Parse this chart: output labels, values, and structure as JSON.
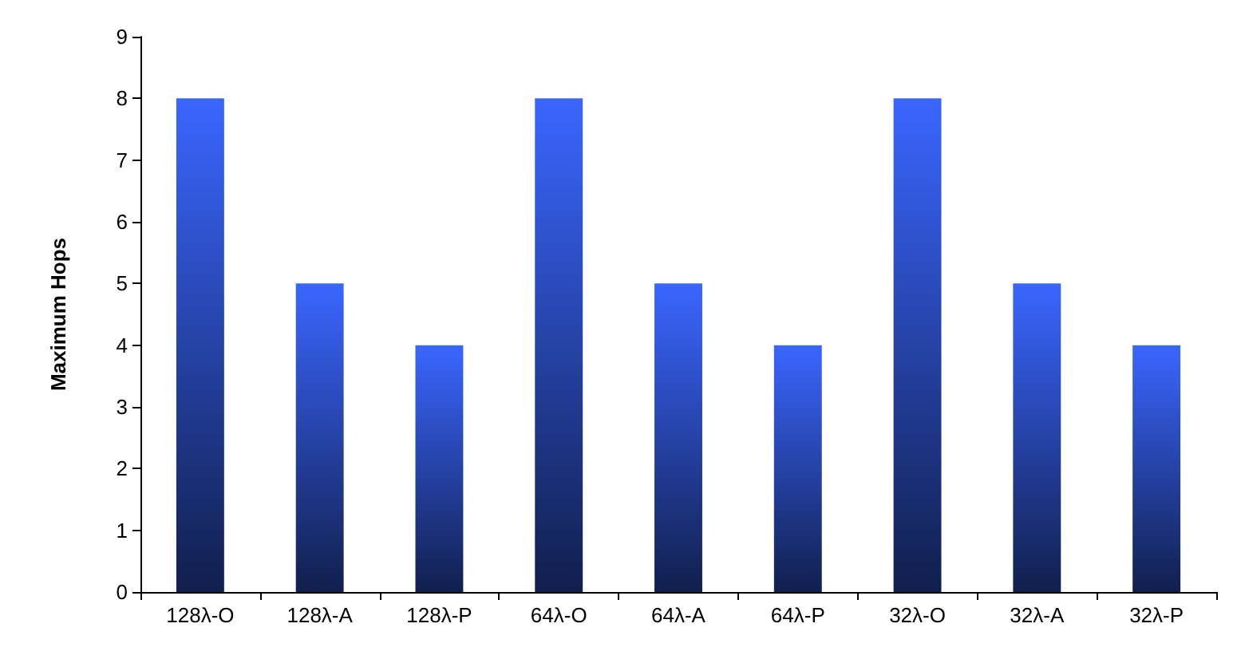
{
  "chart_data": {
    "type": "bar",
    "ylabel": "Maximum Hops",
    "categories": [
      "128λ-O",
      "128λ-A",
      "128λ-P",
      "64λ-O",
      "64λ-A",
      "64λ-P",
      "32λ-O",
      "32λ-A",
      "32λ-P"
    ],
    "values": [
      8,
      5,
      4,
      8,
      5,
      4,
      8,
      5,
      4
    ],
    "color": "#3a66ff",
    "ylim": [
      0,
      9
    ],
    "yticks": [
      0,
      1,
      2,
      3,
      4,
      5,
      6,
      7,
      8,
      9
    ],
    "grid": false
  }
}
